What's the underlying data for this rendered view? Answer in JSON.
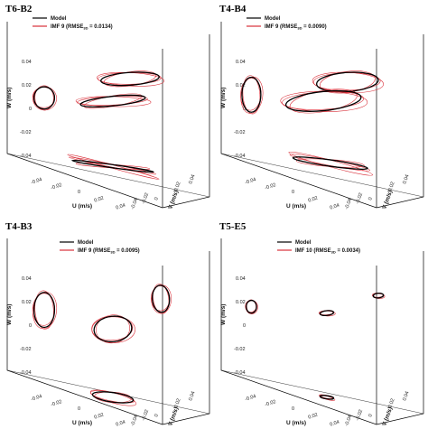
{
  "figure": {
    "colors": {
      "model": "#000000",
      "imf": "#d9303a",
      "frame": "#000000"
    }
  },
  "chart_data": [
    {
      "type": "scatter",
      "panel_label": "T6-B2",
      "legend": [
        {
          "label": "Model",
          "color": "#000000"
        },
        {
          "label_main": "IMF 9 (RMSE",
          "label_sub": "3D",
          "label_tail": " = 0.0134)",
          "color": "#d9303a"
        }
      ],
      "xlabel": "U (m/s)",
      "ylabel": "V (m/s)",
      "zlabel": "W (m/s)",
      "u_ticks": [
        "-0.04",
        "-0.02",
        "0",
        "0.02",
        "0.04"
      ],
      "v_ticks": [
        "-0.04",
        "-0.02",
        "0",
        "0.02",
        "0.04"
      ],
      "w_ticks": [
        "0.04",
        "0.02",
        "0",
        "-0.02",
        "-0.04"
      ],
      "range": [
        -0.04,
        0.04
      ],
      "projections": [
        {
          "plane": "side_wall",
          "center": [
            -0.04,
            0.01
          ],
          "radii": [
            0.006,
            0.007
          ]
        },
        {
          "plane": "back_wall",
          "center": [
            0.01,
            0.022
          ],
          "radii": [
            0.017,
            0.004
          ]
        },
        {
          "plane": "trajectory",
          "center": [
            0.0,
            0.008
          ],
          "radii": [
            0.019,
            0.003
          ]
        },
        {
          "plane": "floor",
          "center": [
            0.0,
            -0.033
          ],
          "radii": [
            0.024,
            0.001
          ]
        }
      ]
    },
    {
      "type": "scatter",
      "panel_label": "T4-B4",
      "legend": [
        {
          "label": "Model",
          "color": "#000000"
        },
        {
          "label_main": "IMF 9 (RMSE",
          "label_sub": "3D",
          "label_tail": " = 0.0090)",
          "color": "#d9303a"
        }
      ],
      "xlabel": "U (m/s)",
      "ylabel": "V (m/s)",
      "zlabel": "W (m/s)",
      "u_ticks": [
        "-0.04",
        "-0.02",
        "0",
        "0.02",
        "0.04"
      ],
      "v_ticks": [
        "-0.04",
        "-0.02",
        "0",
        "0.02",
        "0.04"
      ],
      "w_ticks": [
        "0.04",
        "0.02",
        "0",
        "-0.02",
        "-0.04"
      ],
      "range": [
        -0.04,
        0.04
      ],
      "projections": [
        {
          "plane": "side_wall",
          "center": [
            -0.044,
            0.012
          ],
          "radii": [
            0.0055,
            0.011
          ]
        },
        {
          "plane": "back_wall",
          "center": [
            0.012,
            0.02
          ],
          "radii": [
            0.018,
            0.006
          ]
        },
        {
          "plane": "trajectory",
          "center": [
            -0.002,
            0.008
          ],
          "radii": [
            0.022,
            0.006
          ]
        },
        {
          "plane": "floor",
          "center": [
            0.002,
            -0.031
          ],
          "radii": [
            0.022,
            0.002
          ]
        }
      ]
    },
    {
      "type": "scatter",
      "panel_label": "T4-B3",
      "legend": [
        {
          "label": "Model",
          "color": "#000000"
        },
        {
          "label_main": "IMF 9 (RMSE",
          "label_sub": "3D",
          "label_tail": " = 0.0095)",
          "color": "#d9303a"
        }
      ],
      "xlabel": "U (m/s)",
      "ylabel": "V (m/s)",
      "zlabel": "W (m/s)",
      "u_ticks": [
        "-0.04",
        "-0.02",
        "0",
        "0.02",
        "0.04"
      ],
      "v_ticks": [
        "-0.04",
        "-0.02",
        "0",
        "0.02",
        "0.04"
      ],
      "w_ticks": [
        "0.04",
        "0.02",
        "0",
        "-0.02",
        "-0.04"
      ],
      "range": [
        -0.04,
        0.04
      ],
      "projections": [
        {
          "plane": "side_wall",
          "center": [
            -0.04,
            0.013
          ],
          "radii": [
            0.006,
            0.011
          ]
        },
        {
          "plane": "back_wall",
          "center": [
            0.028,
            0.02
          ],
          "radii": [
            0.005,
            0.0085
          ]
        },
        {
          "plane": "trajectory",
          "center": [
            0.0,
            0.001
          ],
          "radii": [
            0.011,
            0.008
          ]
        },
        {
          "plane": "floor",
          "center": [
            0.0,
            -0.042
          ],
          "radii": [
            0.012,
            0.003
          ]
        }
      ]
    },
    {
      "type": "scatter",
      "panel_label": "T5-E5",
      "legend": [
        {
          "label": "Model",
          "color": "#000000"
        },
        {
          "label_main": "IMF 10 (RMSE",
          "label_sub": "3D",
          "label_tail": " = 0.0034)",
          "color": "#d9303a"
        }
      ],
      "xlabel": "U (m/s)",
      "ylabel": "V (m/s)",
      "zlabel": "W (m/s)",
      "u_ticks": [
        "-0.04",
        "-0.02",
        "0",
        "0.02",
        "0.04"
      ],
      "v_ticks": [
        "-0.04",
        "-0.02",
        "0",
        "0.02",
        "0.04"
      ],
      "w_ticks": [
        "0.04",
        "0.02",
        "0",
        "-0.02",
        "-0.04"
      ],
      "range": [
        -0.04,
        0.04
      ],
      "projections": [
        {
          "plane": "side_wall",
          "center": [
            -0.044,
            0.015
          ],
          "radii": [
            0.003,
            0.004
          ]
        },
        {
          "plane": "back_wall",
          "center": [
            0.03,
            0.022
          ],
          "radii": [
            0.003,
            0.0015
          ]
        },
        {
          "plane": "trajectory",
          "center": [
            0.0,
            0.011
          ],
          "radii": [
            0.004,
            0.0015
          ]
        },
        {
          "plane": "floor",
          "center": [
            0.0,
            -0.042
          ],
          "radii": [
            0.004,
            0.001
          ]
        }
      ]
    }
  ]
}
